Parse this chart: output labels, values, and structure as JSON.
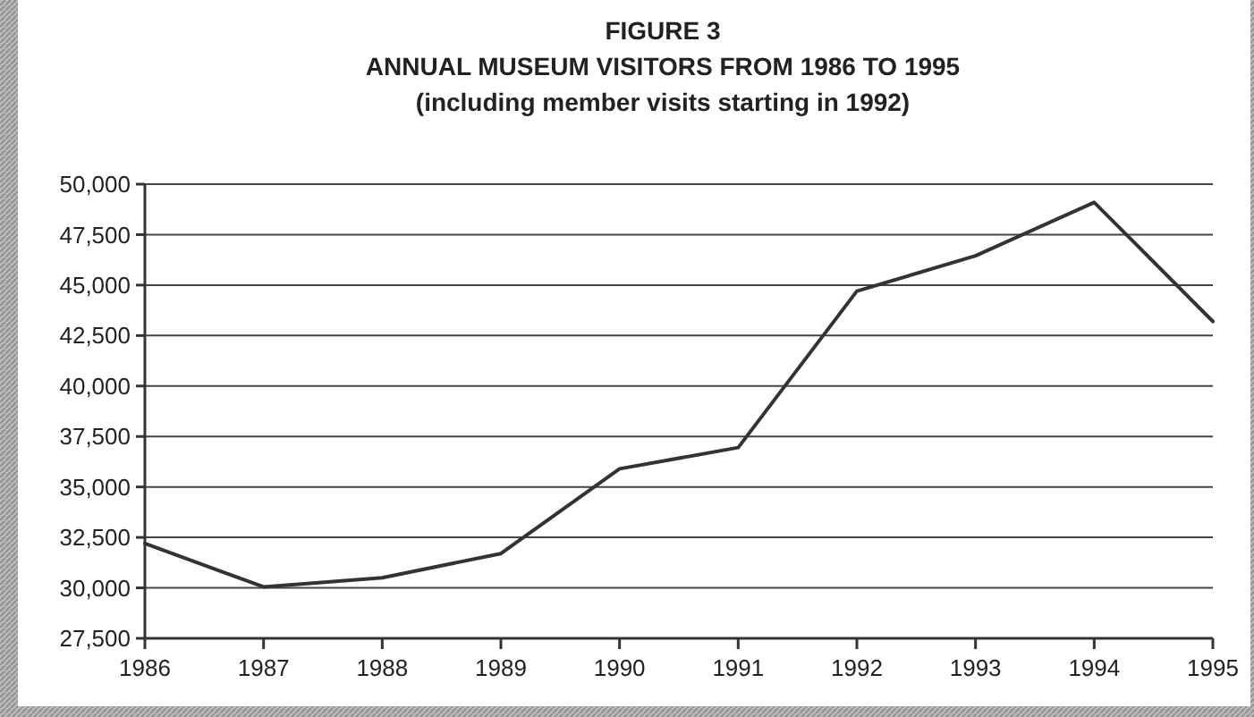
{
  "chart_data": {
    "type": "line",
    "title": "FIGURE 3",
    "subtitle": "ANNUAL MUSEUM VISITORS FROM 1986 TO 1995",
    "annotations": [
      "(including member visits starting in 1992)"
    ],
    "categories": [
      "1986",
      "1987",
      "1988",
      "1989",
      "1990",
      "1991",
      "1992",
      "1993",
      "1994",
      "1995"
    ],
    "series": [
      {
        "color": "#333333",
        "values": [
          32200,
          30050,
          30500,
          31700,
          35900,
          36950,
          44700,
          46450,
          49100,
          43200
        ]
      }
    ],
    "ylim": [
      27500,
      50000
    ],
    "yticks": [
      {
        "value": 27500,
        "label": "27,500"
      },
      {
        "value": 30000,
        "label": "30,000"
      },
      {
        "value": 32500,
        "label": "32,500"
      },
      {
        "value": 35000,
        "label": "35,000"
      },
      {
        "value": 37500,
        "label": "37,500"
      },
      {
        "value": 40000,
        "label": "40,000"
      },
      {
        "value": 42500,
        "label": "42,500"
      },
      {
        "value": 45000,
        "label": "45,000"
      },
      {
        "value": 47500,
        "label": "47,500"
      },
      {
        "value": 50000,
        "label": "50,000"
      }
    ],
    "grid": "y",
    "line_style": "solid"
  }
}
